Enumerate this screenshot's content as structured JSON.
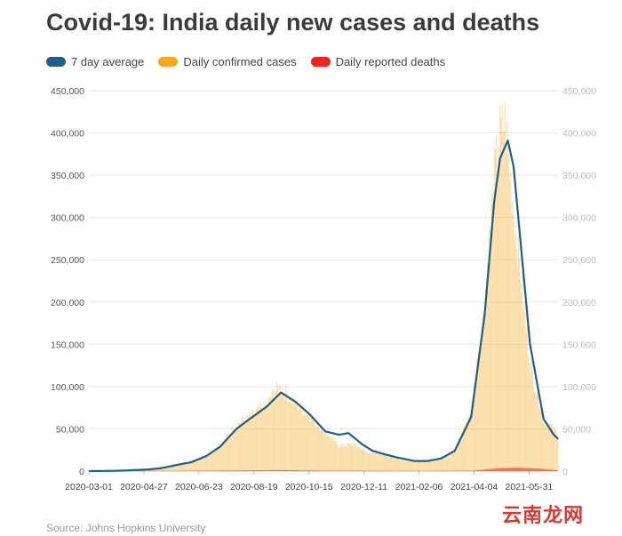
{
  "title": "Covid-19: India daily new cases and deaths",
  "legend": [
    {
      "label": "7 day average",
      "color": "#1f5f86"
    },
    {
      "label": "Daily confirmed cases",
      "color": "#f6a71c"
    },
    {
      "label": "Daily reported deaths",
      "color": "#e8251f"
    }
  ],
  "source": "Source: Johns Hopkins University",
  "watermark": "云南龙网",
  "chart_data": {
    "type": "bar",
    "title": "Covid-19: India daily new cases and deaths",
    "x_start": "2020-03-01",
    "x_end": "2021-06-30",
    "x_tick_labels": [
      "2020-03-01",
      "2020-04-27",
      "2020-06-23",
      "2020-08-19",
      "2020-10-15",
      "2020-12-11",
      "2021-02-06",
      "2021-04-04",
      "2021-05-31"
    ],
    "y_ticks": [
      0,
      50000,
      100000,
      150000,
      200000,
      250000,
      300000,
      350000,
      400000,
      450000
    ],
    "y_tick_labels": [
      "0",
      "50,000",
      "100,000",
      "150,000",
      "200,000",
      "250,000",
      "300,000",
      "350,000",
      "400,000",
      "450,000"
    ],
    "ylim": [
      0,
      450000
    ],
    "grid": true,
    "legend_position": "top-left",
    "series": [
      {
        "name": "Daily confirmed cases",
        "type": "bar",
        "color": "#f6a71c",
        "points": [
          [
            "2020-03-01",
            0
          ],
          [
            "2020-03-15",
            30
          ],
          [
            "2020-04-01",
            1000
          ],
          [
            "2020-04-15",
            1200
          ],
          [
            "2020-05-01",
            2300
          ],
          [
            "2020-05-15",
            4000
          ],
          [
            "2020-06-01",
            8000
          ],
          [
            "2020-06-15",
            11000
          ],
          [
            "2020-07-01",
            18500
          ],
          [
            "2020-07-15",
            30000
          ],
          [
            "2020-08-01",
            55000
          ],
          [
            "2020-08-15",
            65000
          ],
          [
            "2020-09-01",
            78000
          ],
          [
            "2020-09-10",
            96000
          ],
          [
            "2020-09-16",
            98000
          ],
          [
            "2020-10-01",
            81000
          ],
          [
            "2020-10-15",
            67000
          ],
          [
            "2020-11-01",
            46000
          ],
          [
            "2020-11-15",
            30000
          ],
          [
            "2020-12-01",
            32000
          ],
          [
            "2020-12-15",
            22000
          ],
          [
            "2021-01-01",
            20000
          ],
          [
            "2021-01-15",
            15000
          ],
          [
            "2021-02-01",
            11000
          ],
          [
            "2021-02-15",
            12000
          ],
          [
            "2021-03-01",
            15000
          ],
          [
            "2021-03-15",
            26000
          ],
          [
            "2021-04-01",
            72000
          ],
          [
            "2021-04-15",
            200000
          ],
          [
            "2021-04-25",
            350000
          ],
          [
            "2021-05-01",
            400000
          ],
          [
            "2021-05-06",
            414000
          ],
          [
            "2021-05-15",
            310000
          ],
          [
            "2021-06-01",
            128000
          ],
          [
            "2021-06-15",
            62000
          ],
          [
            "2021-06-30",
            45000
          ]
        ]
      },
      {
        "name": "7 day average",
        "type": "line",
        "color": "#1f5f86",
        "points": [
          [
            "2020-03-01",
            0
          ],
          [
            "2020-04-01",
            400
          ],
          [
            "2020-05-01",
            1900
          ],
          [
            "2020-05-15",
            3500
          ],
          [
            "2020-06-01",
            7500
          ],
          [
            "2020-06-15",
            10500
          ],
          [
            "2020-07-01",
            18000
          ],
          [
            "2020-07-15",
            29000
          ],
          [
            "2020-08-01",
            50000
          ],
          [
            "2020-08-15",
            62000
          ],
          [
            "2020-09-01",
            76000
          ],
          [
            "2020-09-16",
            93000
          ],
          [
            "2020-10-01",
            82000
          ],
          [
            "2020-10-15",
            68000
          ],
          [
            "2020-11-01",
            47000
          ],
          [
            "2020-11-15",
            43000
          ],
          [
            "2020-11-25",
            45000
          ],
          [
            "2020-12-10",
            31000
          ],
          [
            "2020-12-20",
            24000
          ],
          [
            "2021-01-01",
            20000
          ],
          [
            "2021-01-15",
            16000
          ],
          [
            "2021-02-01",
            12000
          ],
          [
            "2021-02-15",
            12000
          ],
          [
            "2021-03-01",
            15000
          ],
          [
            "2021-03-15",
            24000
          ],
          [
            "2021-04-01",
            64000
          ],
          [
            "2021-04-15",
            185000
          ],
          [
            "2021-04-25",
            320000
          ],
          [
            "2021-05-01",
            370000
          ],
          [
            "2021-05-09",
            391000
          ],
          [
            "2021-05-15",
            360000
          ],
          [
            "2021-06-01",
            150000
          ],
          [
            "2021-06-15",
            62000
          ],
          [
            "2021-06-25",
            44000
          ],
          [
            "2021-06-30",
            38000
          ]
        ]
      },
      {
        "name": "Daily reported deaths",
        "type": "area",
        "color": "#e8251f",
        "points": [
          [
            "2020-03-01",
            0
          ],
          [
            "2020-06-01",
            200
          ],
          [
            "2020-08-01",
            800
          ],
          [
            "2020-09-16",
            1200
          ],
          [
            "2020-11-01",
            500
          ],
          [
            "2021-02-01",
            100
          ],
          [
            "2021-04-01",
            400
          ],
          [
            "2021-05-01",
            3500
          ],
          [
            "2021-05-20",
            4200
          ],
          [
            "2021-06-10",
            3000
          ],
          [
            "2021-06-30",
            900
          ]
        ]
      }
    ]
  }
}
